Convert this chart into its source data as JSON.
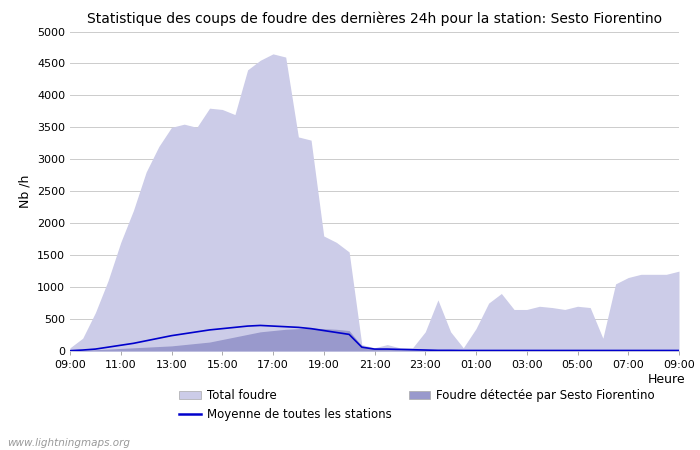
{
  "title": "Statistique des coups de foudre des dernières 24h pour la station: Sesto Fiorentino",
  "xlabel": "Heure",
  "ylabel": "Nb /h",
  "ylim": [
    0,
    5000
  ],
  "yticks": [
    0,
    500,
    1000,
    1500,
    2000,
    2500,
    3000,
    3500,
    4000,
    4500,
    5000
  ],
  "xtick_labels": [
    "09:00",
    "11:00",
    "13:00",
    "15:00",
    "17:00",
    "19:00",
    "21:00",
    "23:00",
    "01:00",
    "03:00",
    "05:00",
    "07:00",
    "09:00"
  ],
  "watermark": "www.lightningmaps.org",
  "total_foudre_color": "#cccce8",
  "detected_foudre_color": "#9999cc",
  "mean_line_color": "#0000cc",
  "bg_color": "#ffffff",
  "total_foudre_values": [
    50,
    200,
    600,
    1100,
    1700,
    2200,
    2800,
    3200,
    3500,
    3550,
    3500,
    3800,
    3780,
    3700,
    4400,
    4550,
    4650,
    4600,
    3350,
    3300,
    1800,
    1700,
    1550,
    100,
    50,
    100,
    50,
    50,
    300,
    800,
    300,
    50,
    350,
    750,
    900,
    650,
    650,
    700,
    680,
    650,
    700,
    680,
    200,
    1050,
    1150,
    1200,
    1200,
    1200,
    1250
  ],
  "detected_foudre_values": [
    5,
    10,
    20,
    30,
    40,
    50,
    60,
    70,
    80,
    100,
    120,
    140,
    180,
    220,
    260,
    300,
    320,
    340,
    350,
    360,
    350,
    340,
    320,
    80,
    30,
    30,
    20,
    20,
    20,
    20,
    15,
    10,
    10,
    10,
    10,
    10,
    10,
    10,
    10,
    10,
    10,
    10,
    10,
    10,
    10,
    10,
    10,
    10,
    10
  ],
  "mean_line_values": [
    5,
    15,
    30,
    60,
    90,
    120,
    160,
    200,
    240,
    270,
    300,
    330,
    350,
    370,
    390,
    400,
    390,
    380,
    370,
    350,
    320,
    290,
    260,
    60,
    30,
    30,
    25,
    20,
    15,
    10,
    10,
    8,
    8,
    8,
    8,
    8,
    8,
    8,
    8,
    8,
    8,
    8,
    8,
    8,
    8,
    8,
    8,
    8,
    8
  ],
  "n_points": 49,
  "n_xticks": 13
}
